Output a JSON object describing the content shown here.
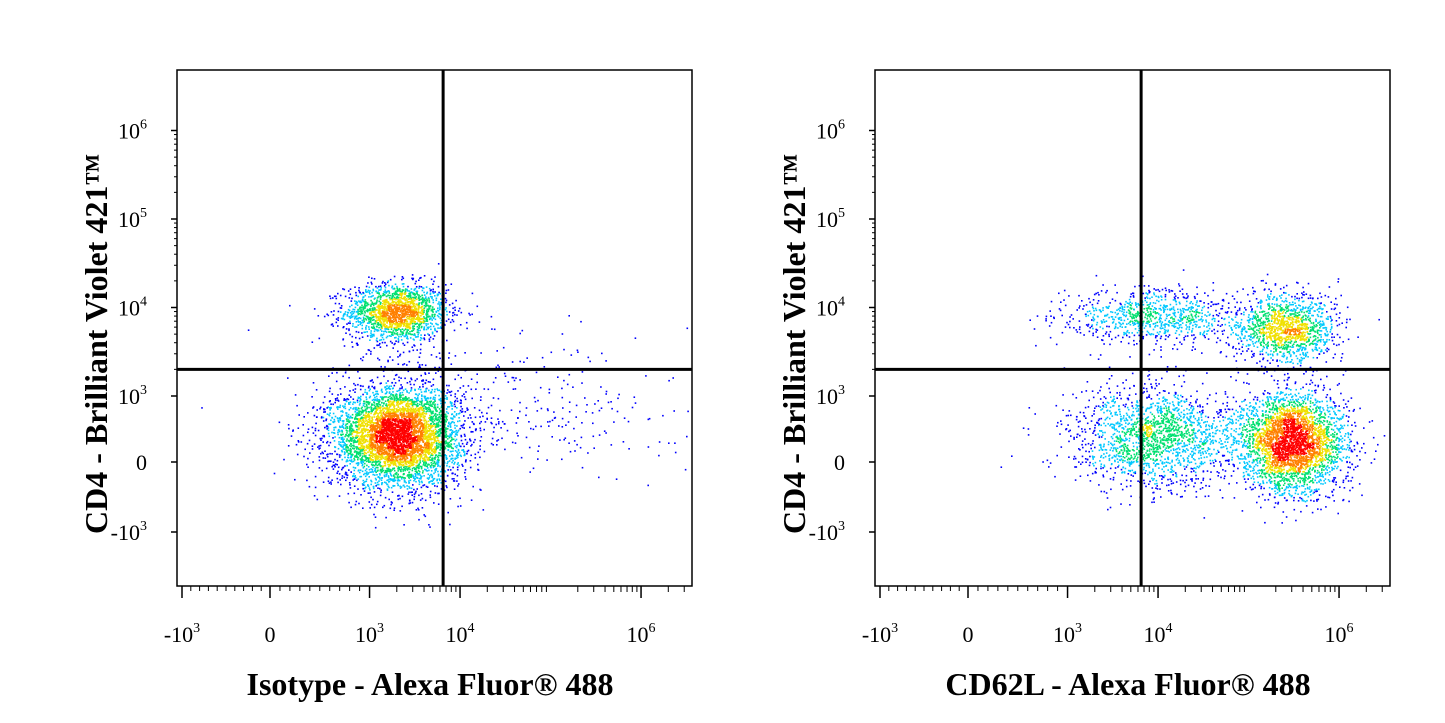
{
  "chart_data": [
    {
      "type": "scatter",
      "subtype": "flow-cytometry-density",
      "xlabel": "Isotype - Alexa Fluor® 488",
      "ylabel": "CD4 - Brilliant Violet 421™",
      "x_scale": "biexponential",
      "y_scale": "biexponential",
      "x_tick_labels": [
        "-10^3",
        "0",
        "10^3",
        "10^4",
        "10^6"
      ],
      "y_tick_labels": [
        "10^6",
        "10^5",
        "10^4",
        "10^3",
        "0",
        "-10^3"
      ],
      "x_gate": 6500,
      "y_gate": 2000,
      "colors": [
        "#0000ff",
        "#00c8ff",
        "#00e070",
        "#f0e000",
        "#ff8000",
        "#ff0000"
      ],
      "populations": [
        {
          "x_center": 2000,
          "y_center": 9000,
          "x_spread": 0.55,
          "y_spread": 0.32,
          "fraction": 0.25
        },
        {
          "x_center": 2000,
          "y_center": 400,
          "x_spread": 0.7,
          "y_spread": 0.75,
          "fraction": 0.7
        },
        {
          "x_center": 30000,
          "y_center": 800,
          "x_spread": 2.0,
          "y_spread": 1.0,
          "fraction": 0.05
        }
      ]
    },
    {
      "type": "scatter",
      "subtype": "flow-cytometry-density",
      "xlabel": "CD62L - Alexa Fluor® 488",
      "ylabel": "CD4 - Brilliant Violet 421™",
      "x_scale": "biexponential",
      "y_scale": "biexponential",
      "x_tick_labels": [
        "-10^3",
        "0",
        "10^3",
        "10^4",
        "10^6"
      ],
      "y_tick_labels": [
        "10^6",
        "10^5",
        "10^4",
        "10^3",
        "0",
        "-10^3"
      ],
      "x_gate": 6500,
      "y_gate": 2000,
      "colors": [
        "#0000ff",
        "#00c8ff",
        "#00e070",
        "#f0e000",
        "#ff8000",
        "#ff0000"
      ],
      "populations": [
        {
          "x_center": 9000,
          "y_center": 8000,
          "x_spread": 1.0,
          "y_spread": 0.3,
          "fraction": 0.12
        },
        {
          "x_center": 250000,
          "y_center": 6000,
          "x_spread": 0.55,
          "y_spread": 0.4,
          "fraction": 0.18
        },
        {
          "x_center": 9000,
          "y_center": 400,
          "x_spread": 0.9,
          "y_spread": 0.75,
          "fraction": 0.25
        },
        {
          "x_center": 300000,
          "y_center": 300,
          "x_spread": 0.6,
          "y_spread": 0.75,
          "fraction": 0.45
        }
      ]
    }
  ]
}
